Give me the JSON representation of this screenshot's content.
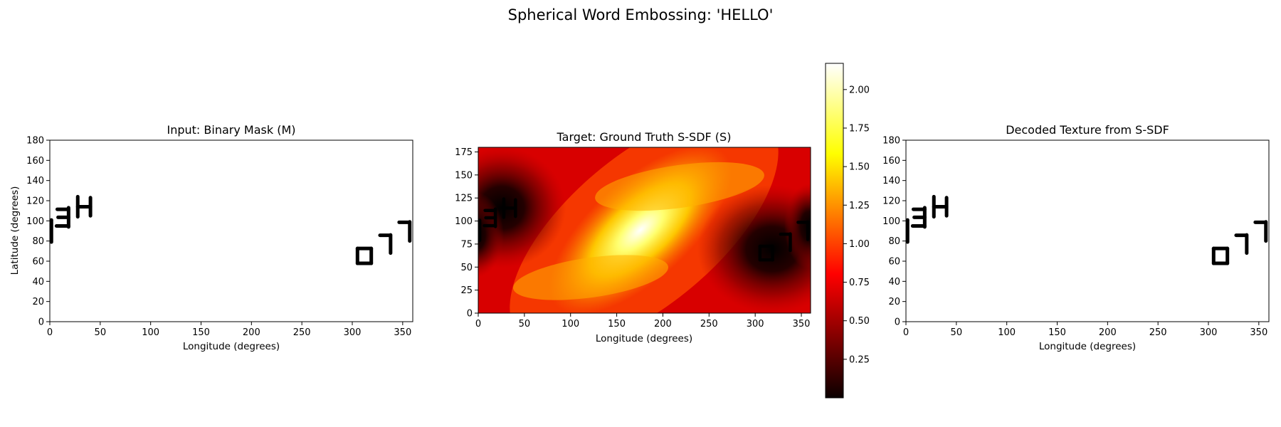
{
  "suptitle": "Spherical Word Embossing: 'HELLO'",
  "chart_data": [
    {
      "type": "heatmap",
      "title": "Input: Binary Mask (M)",
      "xlabel": "Longitude (degrees)",
      "ylabel": "Latitude (degrees)",
      "xlim": [
        0,
        360
      ],
      "ylim": [
        0,
        180
      ],
      "xticks": [
        0,
        50,
        100,
        150,
        200,
        250,
        300,
        350
      ],
      "yticks": [
        0,
        20,
        40,
        60,
        80,
        100,
        120,
        140,
        160,
        180
      ],
      "colormap": "gray_r",
      "background": "#ffffff",
      "ink_color": "#000000",
      "grid": false,
      "glyphs": [
        {
          "char": "H",
          "lon": [
            25,
            43
          ],
          "lat": [
            104,
            124
          ]
        },
        {
          "char": "E",
          "lon": [
            5,
            21
          ],
          "lat": [
            94,
            113
          ]
        },
        {
          "char": "L",
          "lon": [
            0,
            2
          ],
          "lat": [
            79,
            102
          ]
        },
        {
          "char": "O",
          "lon": [
            303,
            321
          ],
          "lat": [
            57,
            74
          ]
        },
        {
          "char": "L",
          "lon": [
            326,
            341
          ],
          "lat": [
            68,
            87
          ]
        },
        {
          "char": "L",
          "lon": [
            345,
            360
          ],
          "lat": [
            80,
            100
          ]
        }
      ]
    },
    {
      "type": "heatmap",
      "title": "Target: Ground Truth S-SDF (S)",
      "xlabel": "Longitude (degrees)",
      "ylabel": "",
      "xlim": [
        0,
        360
      ],
      "ylim": [
        0,
        180
      ],
      "xticks": [
        0,
        50,
        100,
        150,
        200,
        250,
        300,
        350
      ],
      "yticks": [
        0,
        25,
        50,
        75,
        100,
        125,
        150,
        175
      ],
      "colormap": "hot",
      "vmin": 0.0,
      "vmax": 2.17,
      "max_location": {
        "lon": 170,
        "lat": 92
      },
      "colorbar": {
        "ticks": [
          0.25,
          0.5,
          0.75,
          1.0,
          1.25,
          1.5,
          1.75,
          2.0
        ],
        "tick_labels": [
          "0.25",
          "0.50",
          "0.75",
          "1.00",
          "1.25",
          "1.50",
          "1.75",
          "2.00"
        ],
        "placement": "right"
      },
      "grid": false
    },
    {
      "type": "heatmap",
      "title": "Decoded Texture from S-SDF",
      "xlabel": "Longitude (degrees)",
      "ylabel": "",
      "xlim": [
        0,
        360
      ],
      "ylim": [
        0,
        180
      ],
      "xticks": [
        0,
        50,
        100,
        150,
        200,
        250,
        300,
        350
      ],
      "yticks": [
        0,
        20,
        40,
        60,
        80,
        100,
        120,
        140,
        160,
        180
      ],
      "colormap": "gray_r",
      "background": "#ffffff",
      "ink_color": "#000000",
      "grid": false
    }
  ]
}
